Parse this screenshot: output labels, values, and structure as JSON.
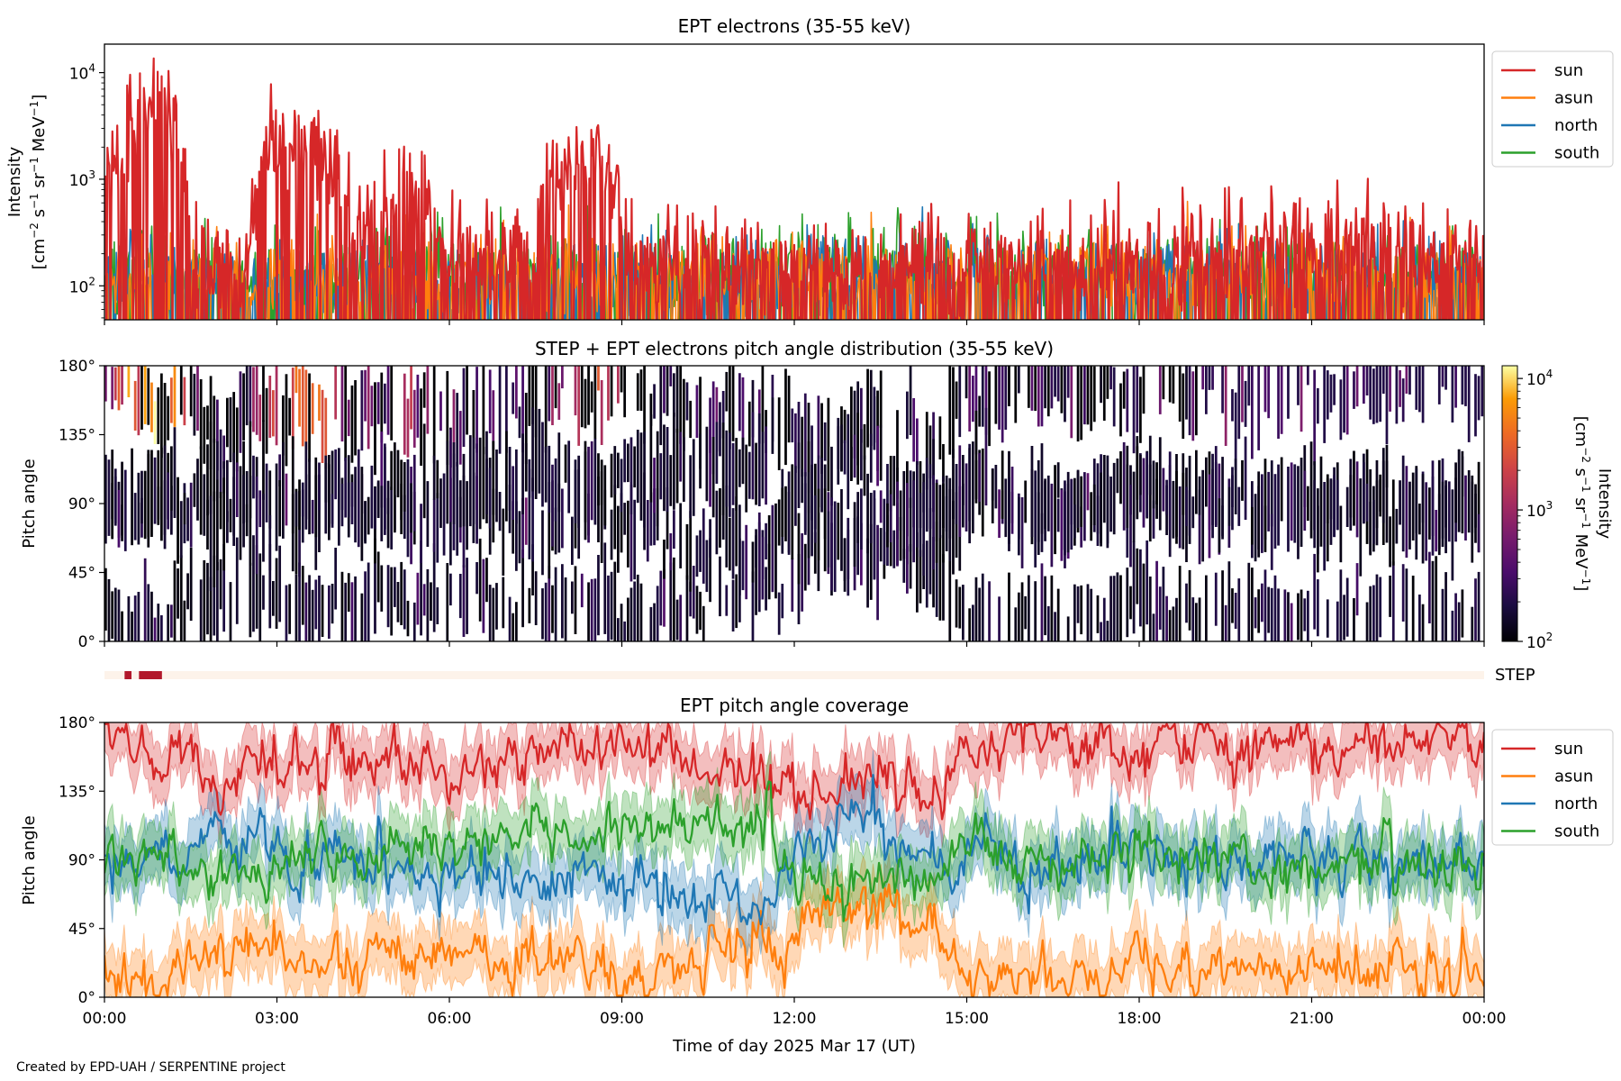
{
  "figure": {
    "xlabel": "Time of day 2025 Mar 17 (UT)",
    "footer": "Created by EPD-UAH / SERPENTINE project",
    "xticks": [
      "00:00",
      "03:00",
      "06:00",
      "09:00",
      "12:00",
      "15:00",
      "18:00",
      "21:00",
      "00:00"
    ]
  },
  "chart_data": [
    {
      "id": "intensity",
      "type": "line",
      "title": "EPT electrons (35-55 keV)",
      "ylabel_line1": "Intensity",
      "ylabel_line2": [
        [
          "[cm",
          0
        ],
        [
          "−2",
          1
        ],
        [
          " s",
          0
        ],
        [
          "−1",
          1
        ],
        [
          " sr",
          0
        ],
        [
          "−1",
          1
        ],
        [
          " MeV",
          0
        ],
        [
          "−1",
          1
        ],
        [
          "]",
          0
        ]
      ],
      "yscale": "log",
      "ylim": [
        48,
        18500
      ],
      "xlim_hours": [
        0,
        24
      ],
      "yticks": [
        {
          "value": 100,
          "base": "10",
          "exp": "2"
        },
        {
          "value": 1000,
          "base": "10",
          "exp": "3"
        },
        {
          "value": 10000,
          "base": "10",
          "exp": "4"
        }
      ],
      "legend": "outside-right",
      "series": [
        {
          "name": "south",
          "color": "#2ca02c",
          "values": [
            130,
            140,
            150,
            150,
            140,
            140,
            140,
            150,
            150,
            140,
            150,
            150,
            140,
            140,
            140,
            140,
            150,
            150,
            140,
            150,
            150,
            140,
            150,
            150,
            150,
            150,
            150,
            150,
            150,
            150,
            150,
            150,
            150,
            150,
            150,
            150,
            150,
            150,
            150,
            150,
            150,
            150,
            150,
            150,
            150,
            150,
            150,
            150,
            150
          ]
        },
        {
          "name": "north",
          "color": "#1f77b4",
          "values": [
            120,
            120,
            130,
            130,
            120,
            120,
            120,
            130,
            130,
            120,
            120,
            130,
            120,
            120,
            120,
            120,
            130,
            130,
            120,
            130,
            130,
            120,
            130,
            130,
            130,
            130,
            130,
            130,
            130,
            130,
            130,
            130,
            130,
            130,
            130,
            130,
            130,
            130,
            130,
            130,
            130,
            130,
            130,
            130,
            130,
            130,
            130,
            130,
            130
          ]
        },
        {
          "name": "asun",
          "color": "#ff7f0e",
          "values": [
            110,
            120,
            130,
            130,
            120,
            120,
            120,
            130,
            130,
            120,
            120,
            130,
            120,
            120,
            120,
            120,
            130,
            130,
            120,
            130,
            130,
            120,
            130,
            130,
            130,
            130,
            130,
            130,
            130,
            130,
            130,
            130,
            130,
            130,
            130,
            130,
            130,
            130,
            130,
            130,
            130,
            130,
            130,
            130,
            130,
            130,
            130,
            130,
            130
          ]
        },
        {
          "name": "sun",
          "color": "#d62728",
          "values": [
            300,
            4000,
            6000,
            200,
            200,
            180,
            2500,
            2000,
            1200,
            250,
            800,
            800,
            180,
            180,
            200,
            180,
            1200,
            2500,
            300,
            180,
            170,
            170,
            170,
            170,
            160,
            160,
            160,
            160,
            160,
            160,
            160,
            160,
            160,
            160,
            170,
            170,
            170,
            170,
            180,
            200,
            260,
            260,
            240,
            230,
            230,
            220,
            200,
            200,
            190
          ]
        }
      ]
    },
    {
      "id": "pitch_angle_distribution",
      "type": "heatmap",
      "title": "STEP + EPT electrons pitch angle distribution (35-55 keV)",
      "ylabel": "Pitch angle",
      "ylim": [
        0,
        180
      ],
      "yticks": [
        "0°",
        "45°",
        "90°",
        "135°",
        "180°"
      ],
      "colorbar": {
        "colormap": "inferno",
        "scale": "log",
        "range": [
          100,
          12500
        ],
        "label_line1": "Intensity",
        "label_line2": [
          [
            "[cm",
            0
          ],
          [
            "−2",
            1
          ],
          [
            " s",
            0
          ],
          [
            "−1",
            1
          ],
          [
            " sr",
            0
          ],
          [
            "−1",
            1
          ],
          [
            " MeV",
            0
          ],
          [
            "−1",
            1
          ],
          [
            "]",
            0
          ]
        ],
        "ticks": [
          {
            "value": 100,
            "base": "10",
            "exp": "2"
          },
          {
            "value": 1000,
            "base": "10",
            "exp": "3"
          },
          {
            "value": 10000,
            "base": "10",
            "exp": "4"
          }
        ]
      }
    },
    {
      "id": "step_coverage",
      "type": "timeline",
      "label": "STEP",
      "color": "#b2182b",
      "background": "#fdf3ea",
      "intervals_hours": [
        [
          0.35,
          0.47
        ],
        [
          0.6,
          1.0
        ]
      ]
    },
    {
      "id": "coverage",
      "type": "line",
      "title": "EPT pitch angle coverage",
      "ylabel": "Pitch angle",
      "ylim": [
        0,
        180
      ],
      "yticks": [
        "0°",
        "45°",
        "90°",
        "135°",
        "180°"
      ],
      "band_halfwidth_deg": 15,
      "legend": "outside-right",
      "series": [
        {
          "name": "sun",
          "color": "#d62728",
          "values": [
            165,
            170,
            170,
            160,
            135,
            155,
            150,
            150,
            160,
            160,
            162,
            150,
            145,
            148,
            155,
            160,
            165,
            168,
            168,
            165,
            160,
            155,
            150,
            148,
            125,
            140,
            135,
            142,
            138,
            128,
            165,
            160,
            168,
            165,
            165,
            168,
            160,
            165,
            170,
            165,
            165,
            168,
            165,
            158,
            168,
            165,
            170,
            170,
            168
          ]
        },
        {
          "name": "asun",
          "color": "#ff7f0e",
          "values": [
            20,
            10,
            8,
            25,
            40,
            35,
            30,
            20,
            22,
            25,
            30,
            40,
            35,
            25,
            20,
            22,
            25,
            20,
            15,
            18,
            22,
            25,
            30,
            35,
            45,
            55,
            55,
            60,
            50,
            45,
            15,
            20,
            15,
            18,
            20,
            15,
            22,
            20,
            15,
            18,
            20,
            22,
            18,
            25,
            20,
            22,
            15,
            15,
            18
          ]
        },
        {
          "name": "north",
          "color": "#1f77b4",
          "values": [
            90,
            88,
            92,
            95,
            105,
            95,
            95,
            90,
            95,
            90,
            88,
            85,
            80,
            80,
            78,
            82,
            80,
            78,
            75,
            72,
            70,
            68,
            65,
            62,
            100,
            110,
            112,
            100,
            95,
            90,
            92,
            90,
            95,
            90,
            88,
            92,
            95,
            90,
            92,
            90,
            88,
            92,
            90,
            95,
            90,
            88,
            92,
            90,
            88
          ]
        },
        {
          "name": "south",
          "color": "#2ca02c",
          "values": [
            90,
            92,
            90,
            85,
            75,
            80,
            95,
            92,
            90,
            95,
            98,
            100,
            100,
            102,
            98,
            100,
            105,
            102,
            106,
            108,
            110,
            112,
            115,
            118,
            80,
            72,
            75,
            75,
            80,
            85,
            90,
            92,
            88,
            90,
            92,
            88,
            85,
            90,
            88,
            92,
            90,
            88,
            92,
            85,
            90,
            92,
            88,
            90,
            92
          ]
        }
      ]
    }
  ]
}
